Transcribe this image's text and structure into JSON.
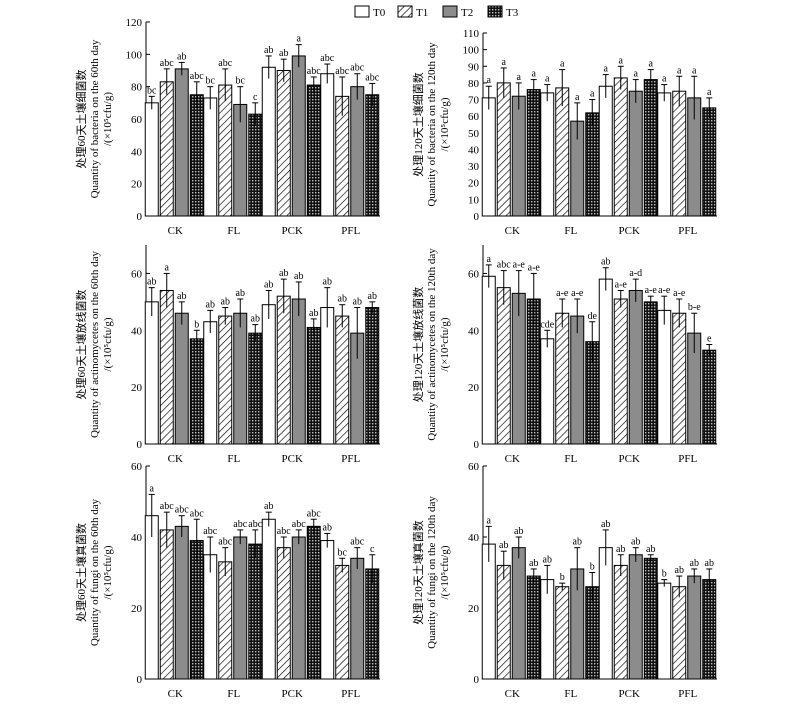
{
  "legend": {
    "entries": [
      {
        "name": "T0",
        "fill": "white"
      },
      {
        "name": "T1",
        "fill": "hatch"
      },
      {
        "name": "T2",
        "fill": "gray"
      },
      {
        "name": "T3",
        "fill": "grid"
      }
    ]
  },
  "colors": {
    "T0": "#ffffff",
    "T2": "#8c8c8c",
    "T3": "#2b2b2b",
    "axis": "#000000"
  },
  "chart_data": [
    {
      "type": "bar",
      "ylabel": [
        "处理60天土壤细菌数",
        "Quantity of bacteria on the 60th day",
        "/(×10⁵cfu/g)"
      ],
      "categories": [
        "CK",
        "FL",
        "PCK",
        "PFL"
      ],
      "ylim": [
        0,
        120
      ],
      "yticks": [
        0,
        20,
        40,
        60,
        80,
        100,
        120
      ],
      "series": [
        {
          "name": "T0",
          "values": [
            70,
            73,
            92,
            88
          ],
          "err": [
            4,
            7,
            7,
            6
          ],
          "sig": [
            "bc",
            "bc",
            "ab",
            "abc"
          ]
        },
        {
          "name": "T1",
          "values": [
            83,
            81,
            90,
            74
          ],
          "err": [
            8,
            10,
            7,
            12
          ],
          "sig": [
            "abc",
            "abc",
            "ab",
            "abc"
          ]
        },
        {
          "name": "T2",
          "values": [
            91,
            69,
            99,
            80
          ],
          "err": [
            4,
            11,
            7,
            8
          ],
          "sig": [
            "ab",
            "bc",
            "a",
            "abc"
          ]
        },
        {
          "name": "T3",
          "values": [
            75,
            63,
            81,
            75
          ],
          "err": [
            8,
            7,
            5,
            7
          ],
          "sig": [
            "abc",
            "c",
            "abc",
            "abc"
          ]
        }
      ]
    },
    {
      "type": "bar",
      "ylabel": [
        "处理120天土壤细菌数",
        "Quantity of bacteria on the 120th day",
        "/(×10⁵cfu/g)"
      ],
      "categories": [
        "CK",
        "FL",
        "PCK",
        "PFL"
      ],
      "ylim": [
        0,
        110
      ],
      "yticks": [
        0,
        10,
        20,
        30,
        40,
        50,
        60,
        70,
        80,
        90,
        100,
        110
      ],
      "series": [
        {
          "name": "T0",
          "values": [
            71,
            74,
            78,
            74
          ],
          "err": [
            7,
            5,
            7,
            5
          ],
          "sig": [
            "a",
            "a",
            "a",
            "a"
          ]
        },
        {
          "name": "T1",
          "values": [
            80,
            77,
            83,
            75
          ],
          "err": [
            9,
            11,
            7,
            9
          ],
          "sig": [
            "a",
            "a",
            "a",
            "a"
          ]
        },
        {
          "name": "T2",
          "values": [
            72,
            57,
            75,
            71
          ],
          "err": [
            8,
            11,
            7,
            13
          ],
          "sig": [
            "a",
            "a",
            "a",
            "a"
          ]
        },
        {
          "name": "T3",
          "values": [
            76,
            62,
            82,
            65
          ],
          "err": [
            6,
            8,
            6,
            6
          ],
          "sig": [
            "a",
            "a",
            "a",
            "a"
          ]
        }
      ]
    },
    {
      "type": "bar",
      "ylabel": [
        "处理60天土壤放线菌数",
        "Quantity of actinomycetes on the 60th day",
        "/(×10⁵cfu/g)"
      ],
      "categories": [
        "CK",
        "FL",
        "PCK",
        "PFL"
      ],
      "ylim": [
        0,
        70
      ],
      "yticks": [
        0,
        20,
        40,
        60
      ],
      "series": [
        {
          "name": "T0",
          "values": [
            50,
            43,
            49,
            48
          ],
          "err": [
            5,
            4,
            5,
            7
          ],
          "sig": [
            "ab",
            "ab",
            "ab",
            "ab"
          ]
        },
        {
          "name": "T1",
          "values": [
            54,
            45,
            52,
            45
          ],
          "err": [
            6,
            3,
            6,
            4
          ],
          "sig": [
            "a",
            "ab",
            "ab",
            "ab"
          ]
        },
        {
          "name": "T2",
          "values": [
            46,
            46,
            51,
            39
          ],
          "err": [
            4,
            5,
            6,
            9
          ],
          "sig": [
            "ab",
            "ab",
            "ab",
            "ab"
          ]
        },
        {
          "name": "T3",
          "values": [
            37,
            39,
            41,
            48
          ],
          "err": [
            3,
            3,
            3,
            2
          ],
          "sig": [
            "b",
            "ab",
            "ab",
            "ab"
          ]
        }
      ]
    },
    {
      "type": "bar",
      "ylabel": [
        "处理120天土壤放线菌数",
        "Quantity of actinomycetes on the 120th day",
        "/(×10⁵cfu/g)"
      ],
      "categories": [
        "CK",
        "FL",
        "PCK",
        "PFL"
      ],
      "ylim": [
        0,
        70
      ],
      "yticks": [
        0,
        20,
        40,
        60
      ],
      "series": [
        {
          "name": "T0",
          "values": [
            59,
            37,
            58,
            47
          ],
          "err": [
            4,
            3,
            4,
            5
          ],
          "sig": [
            "a",
            "cde",
            "ab",
            "a-e"
          ]
        },
        {
          "name": "T1",
          "values": [
            55,
            46,
            51,
            46
          ],
          "err": [
            6,
            5,
            3,
            5
          ],
          "sig": [
            "abc",
            "a-e",
            "a-e",
            "a-e"
          ]
        },
        {
          "name": "T2",
          "values": [
            53,
            45,
            54,
            39
          ],
          "err": [
            8,
            6,
            4,
            7
          ],
          "sig": [
            "a-e",
            "a-e",
            "a-d",
            "b-e"
          ]
        },
        {
          "name": "T3",
          "values": [
            51,
            36,
            50,
            33
          ],
          "err": [
            9,
            7,
            2,
            2
          ],
          "sig": [
            "a-e",
            "de",
            "a-e",
            "e"
          ]
        }
      ]
    },
    {
      "type": "bar",
      "ylabel": [
        "处理60天土壤真菌数",
        "Quantity of fungi on the 60th day",
        "/(×10⁵cfu/g)"
      ],
      "categories": [
        "CK",
        "FL",
        "PCK",
        "PFL"
      ],
      "ylim": [
        0,
        60
      ],
      "yticks": [
        0,
        20,
        40,
        60
      ],
      "series": [
        {
          "name": "T0",
          "values": [
            46,
            35,
            45,
            39
          ],
          "err": [
            6,
            5,
            2,
            2
          ],
          "sig": [
            "a",
            "abc",
            "ab",
            "ab"
          ]
        },
        {
          "name": "T1",
          "values": [
            42,
            33,
            37,
            32
          ],
          "err": [
            5,
            4,
            3,
            2
          ],
          "sig": [
            "abc",
            "abc",
            "abc",
            "bc"
          ]
        },
        {
          "name": "T2",
          "values": [
            43,
            40,
            40,
            34
          ],
          "err": [
            3,
            2,
            2,
            3
          ],
          "sig": [
            "abc",
            "abc",
            "abc",
            "abc"
          ]
        },
        {
          "name": "T3",
          "values": [
            39,
            38,
            43,
            31
          ],
          "err": [
            6,
            4,
            2,
            4
          ],
          "sig": [
            "abc",
            "abc",
            "abc",
            "c"
          ]
        }
      ]
    },
    {
      "type": "bar",
      "ylabel": [
        "处理120天土壤真菌数",
        "Quantity of fungi on the 120th day",
        "/(×10⁵cfu/g)"
      ],
      "categories": [
        "CK",
        "FL",
        "PCK",
        "PFL"
      ],
      "ylim": [
        0,
        60
      ],
      "yticks": [
        0,
        20,
        40,
        60
      ],
      "series": [
        {
          "name": "T0",
          "values": [
            38,
            28,
            37,
            27
          ],
          "err": [
            5,
            4,
            5,
            1
          ],
          "sig": [
            "a",
            "ab",
            "ab",
            "b"
          ]
        },
        {
          "name": "T1",
          "values": [
            32,
            26,
            32,
            26
          ],
          "err": [
            4,
            1,
            3,
            3
          ],
          "sig": [
            "ab",
            "b",
            "ab",
            "ab"
          ]
        },
        {
          "name": "T2",
          "values": [
            37,
            31,
            35,
            29
          ],
          "err": [
            3,
            6,
            2,
            2
          ],
          "sig": [
            "ab",
            "ab",
            "ab",
            "ab"
          ]
        },
        {
          "name": "T3",
          "values": [
            29,
            26,
            34,
            28
          ],
          "err": [
            2,
            4,
            1,
            3
          ],
          "sig": [
            "ab",
            "b",
            "ab",
            "ab"
          ]
        }
      ]
    }
  ]
}
